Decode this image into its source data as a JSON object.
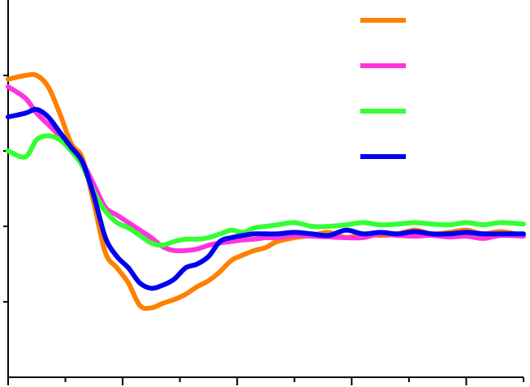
{
  "chart_data": {
    "type": "line",
    "title": "",
    "xlabel": "",
    "ylabel": "",
    "xlim": [
      0,
      9
    ],
    "ylim": [
      0,
      5
    ],
    "x_ticks": [
      0,
      1,
      2,
      3,
      4,
      5,
      6,
      7,
      8,
      9
    ],
    "y_ticks": [
      1,
      2,
      3,
      4
    ],
    "grid": false,
    "legend": "top-right",
    "series": [
      {
        "color": "#ff8000",
        "x": [
          0,
          0.3,
          0.5,
          0.7,
          0.9,
          1.1,
          1.3,
          1.5,
          1.7,
          1.9,
          2.1,
          2.3,
          2.5,
          2.7,
          2.9,
          3.1,
          3.3,
          3.5,
          3.7,
          3.9,
          4.1,
          4.3,
          4.5,
          4.7,
          5.0,
          5.3,
          5.6,
          5.9,
          6.2,
          6.5,
          6.8,
          7.1,
          7.4,
          7.7,
          8.0,
          8.3,
          8.6,
          9.0
        ],
        "y": [
          3.95,
          4.0,
          4.0,
          3.85,
          3.5,
          3.1,
          2.9,
          2.3,
          1.65,
          1.45,
          1.25,
          0.95,
          0.92,
          0.98,
          1.03,
          1.1,
          1.2,
          1.28,
          1.4,
          1.55,
          1.62,
          1.68,
          1.72,
          1.8,
          1.85,
          1.88,
          1.92,
          1.85,
          1.9,
          1.88,
          1.9,
          1.95,
          1.9,
          1.92,
          1.95,
          1.9,
          1.93,
          1.88
        ]
      },
      {
        "color": "#ff33dd",
        "x": [
          0,
          0.3,
          0.5,
          0.7,
          0.9,
          1.1,
          1.3,
          1.5,
          1.7,
          1.9,
          2.1,
          2.3,
          2.5,
          2.7,
          2.9,
          3.1,
          3.3,
          3.5,
          3.7,
          3.9,
          4.1,
          4.3,
          4.5,
          4.7,
          5.0,
          5.3,
          5.6,
          5.9,
          6.2,
          6.5,
          6.8,
          7.1,
          7.4,
          7.7,
          8.0,
          8.3,
          8.6,
          9.0
        ],
        "y": [
          3.85,
          3.7,
          3.5,
          3.35,
          3.2,
          3.05,
          2.85,
          2.55,
          2.25,
          2.15,
          2.05,
          1.95,
          1.85,
          1.73,
          1.68,
          1.68,
          1.7,
          1.75,
          1.78,
          1.8,
          1.82,
          1.83,
          1.85,
          1.85,
          1.88,
          1.87,
          1.86,
          1.85,
          1.85,
          1.9,
          1.88,
          1.87,
          1.88,
          1.86,
          1.87,
          1.84,
          1.88,
          1.87
        ]
      },
      {
        "color": "#33ff33",
        "x": [
          0,
          0.3,
          0.5,
          0.7,
          0.9,
          1.1,
          1.3,
          1.5,
          1.7,
          1.9,
          2.1,
          2.3,
          2.5,
          2.7,
          2.9,
          3.1,
          3.3,
          3.5,
          3.7,
          3.9,
          4.1,
          4.3,
          4.5,
          4.7,
          5.0,
          5.3,
          5.6,
          5.9,
          6.2,
          6.5,
          6.8,
          7.1,
          7.4,
          7.7,
          8.0,
          8.3,
          8.6,
          9.0
        ],
        "y": [
          3.0,
          2.92,
          3.15,
          3.2,
          3.15,
          3.0,
          2.8,
          2.45,
          2.2,
          2.05,
          1.98,
          1.88,
          1.78,
          1.75,
          1.8,
          1.83,
          1.83,
          1.85,
          1.9,
          1.95,
          1.92,
          1.98,
          2.0,
          2.02,
          2.05,
          2.0,
          2.0,
          2.02,
          2.05,
          2.02,
          2.03,
          2.05,
          2.03,
          2.02,
          2.05,
          2.02,
          2.05,
          2.03
        ]
      },
      {
        "color": "#0000ee",
        "x": [
          0,
          0.3,
          0.5,
          0.7,
          0.9,
          1.1,
          1.3,
          1.5,
          1.7,
          1.9,
          2.1,
          2.3,
          2.5,
          2.7,
          2.9,
          3.1,
          3.3,
          3.5,
          3.7,
          3.9,
          4.1,
          4.3,
          4.5,
          4.7,
          5.0,
          5.3,
          5.6,
          5.9,
          6.2,
          6.5,
          6.8,
          7.1,
          7.4,
          7.7,
          8.0,
          8.3,
          8.6,
          9.0
        ],
        "y": [
          3.45,
          3.5,
          3.55,
          3.45,
          3.25,
          3.05,
          2.85,
          2.4,
          1.85,
          1.6,
          1.45,
          1.25,
          1.18,
          1.22,
          1.3,
          1.45,
          1.5,
          1.6,
          1.8,
          1.85,
          1.88,
          1.9,
          1.9,
          1.9,
          1.92,
          1.9,
          1.88,
          1.95,
          1.9,
          1.92,
          1.9,
          1.93,
          1.9,
          1.9,
          1.92,
          1.9,
          1.9,
          1.9
        ]
      }
    ]
  }
}
